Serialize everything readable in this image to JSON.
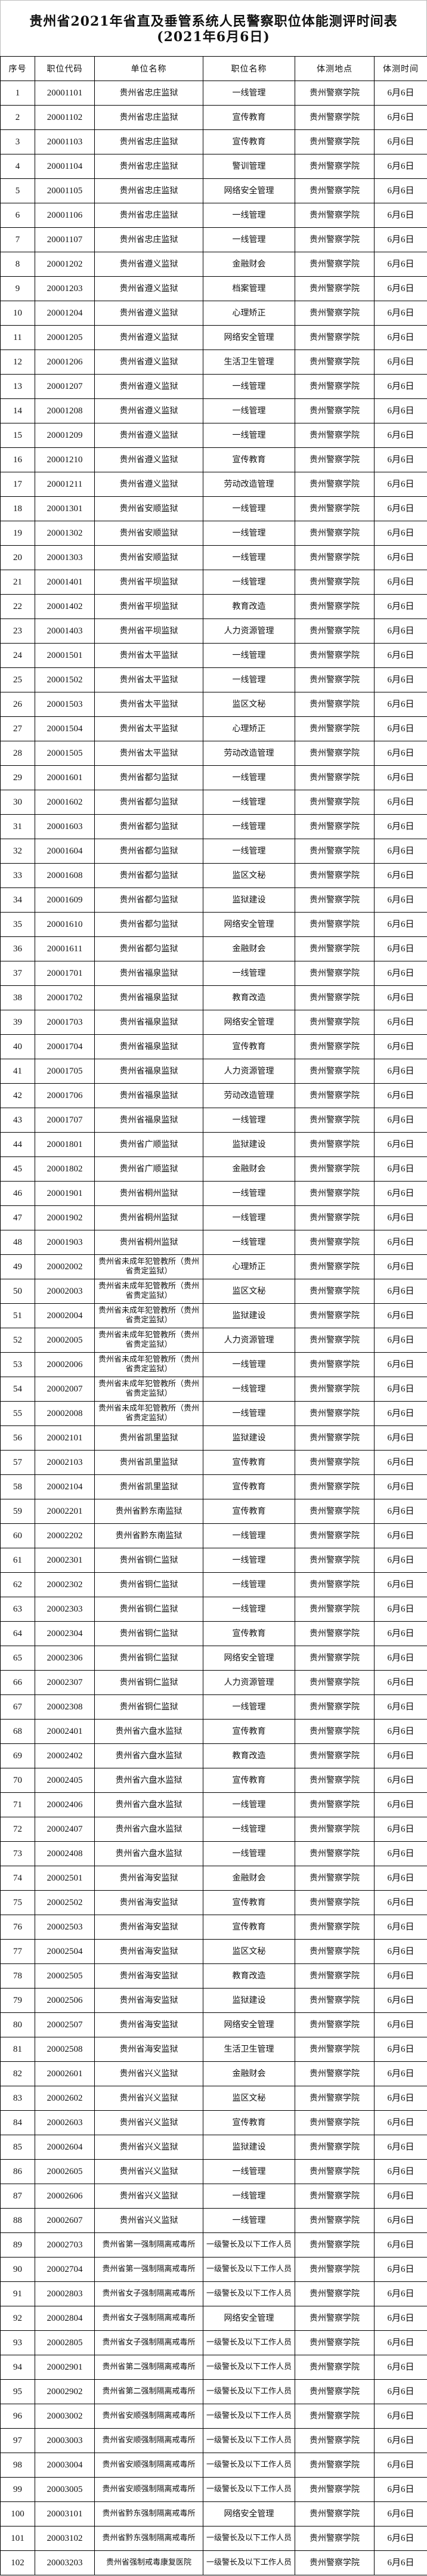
{
  "title": {
    "line1": "贵州省2021年省直及垂管系统人民警察职位体能测评时间表",
    "line2": "(2021年6月6日)"
  },
  "table": {
    "headers": [
      "序号",
      "职位代码",
      "单位名称",
      "职位名称",
      "体测地点",
      "体测时间"
    ],
    "rows": [
      [
        "1",
        "20001101",
        "贵州省忠庄监狱",
        "一线管理",
        "贵州警察学院",
        "6月6日"
      ],
      [
        "2",
        "20001102",
        "贵州省忠庄监狱",
        "宣传教育",
        "贵州警察学院",
        "6月6日"
      ],
      [
        "3",
        "20001103",
        "贵州省忠庄监狱",
        "宣传教育",
        "贵州警察学院",
        "6月6日"
      ],
      [
        "4",
        "20001104",
        "贵州省忠庄监狱",
        "警训管理",
        "贵州警察学院",
        "6月6日"
      ],
      [
        "5",
        "20001105",
        "贵州省忠庄监狱",
        "网络安全管理",
        "贵州警察学院",
        "6月6日"
      ],
      [
        "6",
        "20001106",
        "贵州省忠庄监狱",
        "一线管理",
        "贵州警察学院",
        "6月6日"
      ],
      [
        "7",
        "20001107",
        "贵州省忠庄监狱",
        "一线管理",
        "贵州警察学院",
        "6月6日"
      ],
      [
        "8",
        "20001202",
        "贵州省遵义监狱",
        "金融财会",
        "贵州警察学院",
        "6月6日"
      ],
      [
        "9",
        "20001203",
        "贵州省遵义监狱",
        "档案管理",
        "贵州警察学院",
        "6月6日"
      ],
      [
        "10",
        "20001204",
        "贵州省遵义监狱",
        "心理矫正",
        "贵州警察学院",
        "6月6日"
      ],
      [
        "11",
        "20001205",
        "贵州省遵义监狱",
        "网络安全管理",
        "贵州警察学院",
        "6月6日"
      ],
      [
        "12",
        "20001206",
        "贵州省遵义监狱",
        "生活卫生管理",
        "贵州警察学院",
        "6月6日"
      ],
      [
        "13",
        "20001207",
        "贵州省遵义监狱",
        "一线管理",
        "贵州警察学院",
        "6月6日"
      ],
      [
        "14",
        "20001208",
        "贵州省遵义监狱",
        "一线管理",
        "贵州警察学院",
        "6月6日"
      ],
      [
        "15",
        "20001209",
        "贵州省遵义监狱",
        "一线管理",
        "贵州警察学院",
        "6月6日"
      ],
      [
        "16",
        "20001210",
        "贵州省遵义监狱",
        "宣传教育",
        "贵州警察学院",
        "6月6日"
      ],
      [
        "17",
        "20001211",
        "贵州省遵义监狱",
        "劳动改造管理",
        "贵州警察学院",
        "6月6日"
      ],
      [
        "18",
        "20001301",
        "贵州省安顺监狱",
        "一线管理",
        "贵州警察学院",
        "6月6日"
      ],
      [
        "19",
        "20001302",
        "贵州省安顺监狱",
        "一线管理",
        "贵州警察学院",
        "6月6日"
      ],
      [
        "20",
        "20001303",
        "贵州省安顺监狱",
        "一线管理",
        "贵州警察学院",
        "6月6日"
      ],
      [
        "21",
        "20001401",
        "贵州省平坝监狱",
        "一线管理",
        "贵州警察学院",
        "6月6日"
      ],
      [
        "22",
        "20001402",
        "贵州省平坝监狱",
        "教育改造",
        "贵州警察学院",
        "6月6日"
      ],
      [
        "23",
        "20001403",
        "贵州省平坝监狱",
        "人力资源管理",
        "贵州警察学院",
        "6月6日"
      ],
      [
        "24",
        "20001501",
        "贵州省太平监狱",
        "一线管理",
        "贵州警察学院",
        "6月6日"
      ],
      [
        "25",
        "20001502",
        "贵州省太平监狱",
        "一线管理",
        "贵州警察学院",
        "6月6日"
      ],
      [
        "26",
        "20001503",
        "贵州省太平监狱",
        "监区文秘",
        "贵州警察学院",
        "6月6日"
      ],
      [
        "27",
        "20001504",
        "贵州省太平监狱",
        "心理矫正",
        "贵州警察学院",
        "6月6日"
      ],
      [
        "28",
        "20001505",
        "贵州省太平监狱",
        "劳动改造管理",
        "贵州警察学院",
        "6月6日"
      ],
      [
        "29",
        "20001601",
        "贵州省都匀监狱",
        "一线管理",
        "贵州警察学院",
        "6月6日"
      ],
      [
        "30",
        "20001602",
        "贵州省都匀监狱",
        "一线管理",
        "贵州警察学院",
        "6月6日"
      ],
      [
        "31",
        "20001603",
        "贵州省都匀监狱",
        "一线管理",
        "贵州警察学院",
        "6月6日"
      ],
      [
        "32",
        "20001604",
        "贵州省都匀监狱",
        "一线管理",
        "贵州警察学院",
        "6月6日"
      ],
      [
        "33",
        "20001608",
        "贵州省都匀监狱",
        "监区文秘",
        "贵州警察学院",
        "6月6日"
      ],
      [
        "34",
        "20001609",
        "贵州省都匀监狱",
        "监狱建设",
        "贵州警察学院",
        "6月6日"
      ],
      [
        "35",
        "20001610",
        "贵州省都匀监狱",
        "网络安全管理",
        "贵州警察学院",
        "6月6日"
      ],
      [
        "36",
        "20001611",
        "贵州省都匀监狱",
        "金融财会",
        "贵州警察学院",
        "6月6日"
      ],
      [
        "37",
        "20001701",
        "贵州省福泉监狱",
        "一线管理",
        "贵州警察学院",
        "6月6日"
      ],
      [
        "38",
        "20001702",
        "贵州省福泉监狱",
        "教育改造",
        "贵州警察学院",
        "6月6日"
      ],
      [
        "39",
        "20001703",
        "贵州省福泉监狱",
        "网络安全管理",
        "贵州警察学院",
        "6月6日"
      ],
      [
        "40",
        "20001704",
        "贵州省福泉监狱",
        "宣传教育",
        "贵州警察学院",
        "6月6日"
      ],
      [
        "41",
        "20001705",
        "贵州省福泉监狱",
        "人力资源管理",
        "贵州警察学院",
        "6月6日"
      ],
      [
        "42",
        "20001706",
        "贵州省福泉监狱",
        "劳动改造管理",
        "贵州警察学院",
        "6月6日"
      ],
      [
        "43",
        "20001707",
        "贵州省福泉监狱",
        "一线管理",
        "贵州警察学院",
        "6月6日"
      ],
      [
        "44",
        "20001801",
        "贵州省广顺监狱",
        "监狱建设",
        "贵州警察学院",
        "6月6日"
      ],
      [
        "45",
        "20001802",
        "贵州省广顺监狱",
        "金融财会",
        "贵州警察学院",
        "6月6日"
      ],
      [
        "46",
        "20001901",
        "贵州省桐州监狱",
        "一线管理",
        "贵州警察学院",
        "6月6日"
      ],
      [
        "47",
        "20001902",
        "贵州省桐州监狱",
        "一线管理",
        "贵州警察学院",
        "6月6日"
      ],
      [
        "48",
        "20001903",
        "贵州省桐州监狱",
        "一线管理",
        "贵州警察学院",
        "6月6日"
      ],
      [
        "49",
        "20002002",
        "贵州省未成年犯管教所（贵州省贵定监狱）",
        "心理矫正",
        "贵州警察学院",
        "6月6日"
      ],
      [
        "50",
        "20002003",
        "贵州省未成年犯管教所（贵州省贵定监狱）",
        "监区文秘",
        "贵州警察学院",
        "6月6日"
      ],
      [
        "51",
        "20002004",
        "贵州省未成年犯管教所（贵州省贵定监狱）",
        "监狱建设",
        "贵州警察学院",
        "6月6日"
      ],
      [
        "52",
        "20002005",
        "贵州省未成年犯管教所（贵州省贵定监狱）",
        "人力资源管理",
        "贵州警察学院",
        "6月6日"
      ],
      [
        "53",
        "20002006",
        "贵州省未成年犯管教所（贵州省贵定监狱）",
        "一线管理",
        "贵州警察学院",
        "6月6日"
      ],
      [
        "54",
        "20002007",
        "贵州省未成年犯管教所（贵州省贵定监狱）",
        "一线管理",
        "贵州警察学院",
        "6月6日"
      ],
      [
        "55",
        "20002008",
        "贵州省未成年犯管教所（贵州省贵定监狱）",
        "一线管理",
        "贵州警察学院",
        "6月6日"
      ],
      [
        "56",
        "20002101",
        "贵州省凯里监狱",
        "监狱建设",
        "贵州警察学院",
        "6月6日"
      ],
      [
        "57",
        "20002103",
        "贵州省凯里监狱",
        "宣传教育",
        "贵州警察学院",
        "6月6日"
      ],
      [
        "58",
        "20002104",
        "贵州省凯里监狱",
        "宣传教育",
        "贵州警察学院",
        "6月6日"
      ],
      [
        "59",
        "20002201",
        "贵州省黔东南监狱",
        "宣传教育",
        "贵州警察学院",
        "6月6日"
      ],
      [
        "60",
        "20002202",
        "贵州省黔东南监狱",
        "一线管理",
        "贵州警察学院",
        "6月6日"
      ],
      [
        "61",
        "20002301",
        "贵州省铜仁监狱",
        "一线管理",
        "贵州警察学院",
        "6月6日"
      ],
      [
        "62",
        "20002302",
        "贵州省铜仁监狱",
        "一线管理",
        "贵州警察学院",
        "6月6日"
      ],
      [
        "63",
        "20002303",
        "贵州省铜仁监狱",
        "一线管理",
        "贵州警察学院",
        "6月6日"
      ],
      [
        "64",
        "20002304",
        "贵州省铜仁监狱",
        "宣传教育",
        "贵州警察学院",
        "6月6日"
      ],
      [
        "65",
        "20002306",
        "贵州省铜仁监狱",
        "网络安全管理",
        "贵州警察学院",
        "6月6日"
      ],
      [
        "66",
        "20002307",
        "贵州省铜仁监狱",
        "人力资源管理",
        "贵州警察学院",
        "6月6日"
      ],
      [
        "67",
        "20002308",
        "贵州省铜仁监狱",
        "一线管理",
        "贵州警察学院",
        "6月6日"
      ],
      [
        "68",
        "20002401",
        "贵州省六盘水监狱",
        "宣传教育",
        "贵州警察学院",
        "6月6日"
      ],
      [
        "69",
        "20002402",
        "贵州省六盘水监狱",
        "教育改造",
        "贵州警察学院",
        "6月6日"
      ],
      [
        "70",
        "20002405",
        "贵州省六盘水监狱",
        "宣传教育",
        "贵州警察学院",
        "6月6日"
      ],
      [
        "71",
        "20002406",
        "贵州省六盘水监狱",
        "一线管理",
        "贵州警察学院",
        "6月6日"
      ],
      [
        "72",
        "20002407",
        "贵州省六盘水监狱",
        "一线管理",
        "贵州警察学院",
        "6月6日"
      ],
      [
        "73",
        "20002408",
        "贵州省六盘水监狱",
        "一线管理",
        "贵州警察学院",
        "6月6日"
      ],
      [
        "74",
        "20002501",
        "贵州省海安监狱",
        "金融财会",
        "贵州警察学院",
        "6月6日"
      ],
      [
        "75",
        "20002502",
        "贵州省海安监狱",
        "宣传教育",
        "贵州警察学院",
        "6月6日"
      ],
      [
        "76",
        "20002503",
        "贵州省海安监狱",
        "宣传教育",
        "贵州警察学院",
        "6月6日"
      ],
      [
        "77",
        "20002504",
        "贵州省海安监狱",
        "监区文秘",
        "贵州警察学院",
        "6月6日"
      ],
      [
        "78",
        "20002505",
        "贵州省海安监狱",
        "教育改造",
        "贵州警察学院",
        "6月6日"
      ],
      [
        "79",
        "20002506",
        "贵州省海安监狱",
        "监狱建设",
        "贵州警察学院",
        "6月6日"
      ],
      [
        "80",
        "20002507",
        "贵州省海安监狱",
        "网络安全管理",
        "贵州警察学院",
        "6月6日"
      ],
      [
        "81",
        "20002508",
        "贵州省海安监狱",
        "生活卫生管理",
        "贵州警察学院",
        "6月6日"
      ],
      [
        "82",
        "20002601",
        "贵州省兴义监狱",
        "金融财会",
        "贵州警察学院",
        "6月6日"
      ],
      [
        "83",
        "20002602",
        "贵州省兴义监狱",
        "监区文秘",
        "贵州警察学院",
        "6月6日"
      ],
      [
        "84",
        "20002603",
        "贵州省兴义监狱",
        "宣传教育",
        "贵州警察学院",
        "6月6日"
      ],
      [
        "85",
        "20002604",
        "贵州省兴义监狱",
        "监狱建设",
        "贵州警察学院",
        "6月6日"
      ],
      [
        "86",
        "20002605",
        "贵州省兴义监狱",
        "一线管理",
        "贵州警察学院",
        "6月6日"
      ],
      [
        "87",
        "20002606",
        "贵州省兴义监狱",
        "一线管理",
        "贵州警察学院",
        "6月6日"
      ],
      [
        "88",
        "20002607",
        "贵州省兴义监狱",
        "一线管理",
        "贵州警察学院",
        "6月6日"
      ],
      [
        "89",
        "20002703",
        "贵州省第一强制隔离戒毒所",
        "一级警长及以下工作人员",
        "贵州警察学院",
        "6月6日"
      ],
      [
        "90",
        "20002704",
        "贵州省第一强制隔离戒毒所",
        "一级警长及以下工作人员",
        "贵州警察学院",
        "6月6日"
      ],
      [
        "91",
        "20002803",
        "贵州省女子强制隔离戒毒所",
        "一级警长及以下工作人员",
        "贵州警察学院",
        "6月6日"
      ],
      [
        "92",
        "20002804",
        "贵州省女子强制隔离戒毒所",
        "网络安全管理",
        "贵州警察学院",
        "6月6日"
      ],
      [
        "93",
        "20002805",
        "贵州省女子强制隔离戒毒所",
        "一级警长及以下工作人员",
        "贵州警察学院",
        "6月6日"
      ],
      [
        "94",
        "20002901",
        "贵州省第二强制隔离戒毒所",
        "一级警长及以下工作人员",
        "贵州警察学院",
        "6月6日"
      ],
      [
        "95",
        "20002902",
        "贵州省第二强制隔离戒毒所",
        "一级警长及以下工作人员",
        "贵州警察学院",
        "6月6日"
      ],
      [
        "96",
        "20003002",
        "贵州省安顺强制隔离戒毒所",
        "一级警长及以下工作人员",
        "贵州警察学院",
        "6月6日"
      ],
      [
        "97",
        "20003003",
        "贵州省安顺强制隔离戒毒所",
        "一级警长及以下工作人员",
        "贵州警察学院",
        "6月6日"
      ],
      [
        "98",
        "20003004",
        "贵州省安顺强制隔离戒毒所",
        "一级警长及以下工作人员",
        "贵州警察学院",
        "6月6日"
      ],
      [
        "99",
        "20003005",
        "贵州省安顺强制隔离戒毒所",
        "一级警长及以下工作人员",
        "贵州警察学院",
        "6月6日"
      ],
      [
        "100",
        "20003101",
        "贵州省黔东强制隔离戒毒所",
        "网络安全管理",
        "贵州警察学院",
        "6月6日"
      ],
      [
        "101",
        "20003102",
        "贵州省黔东强制隔离戒毒所",
        "一级警长及以下工作人员",
        "贵州警察学院",
        "6月6日"
      ],
      [
        "102",
        "20003203",
        "贵州省强制戒毒康复医院",
        "一级警长及以下工作人员",
        "贵州警察学院",
        "6月6日"
      ]
    ]
  }
}
